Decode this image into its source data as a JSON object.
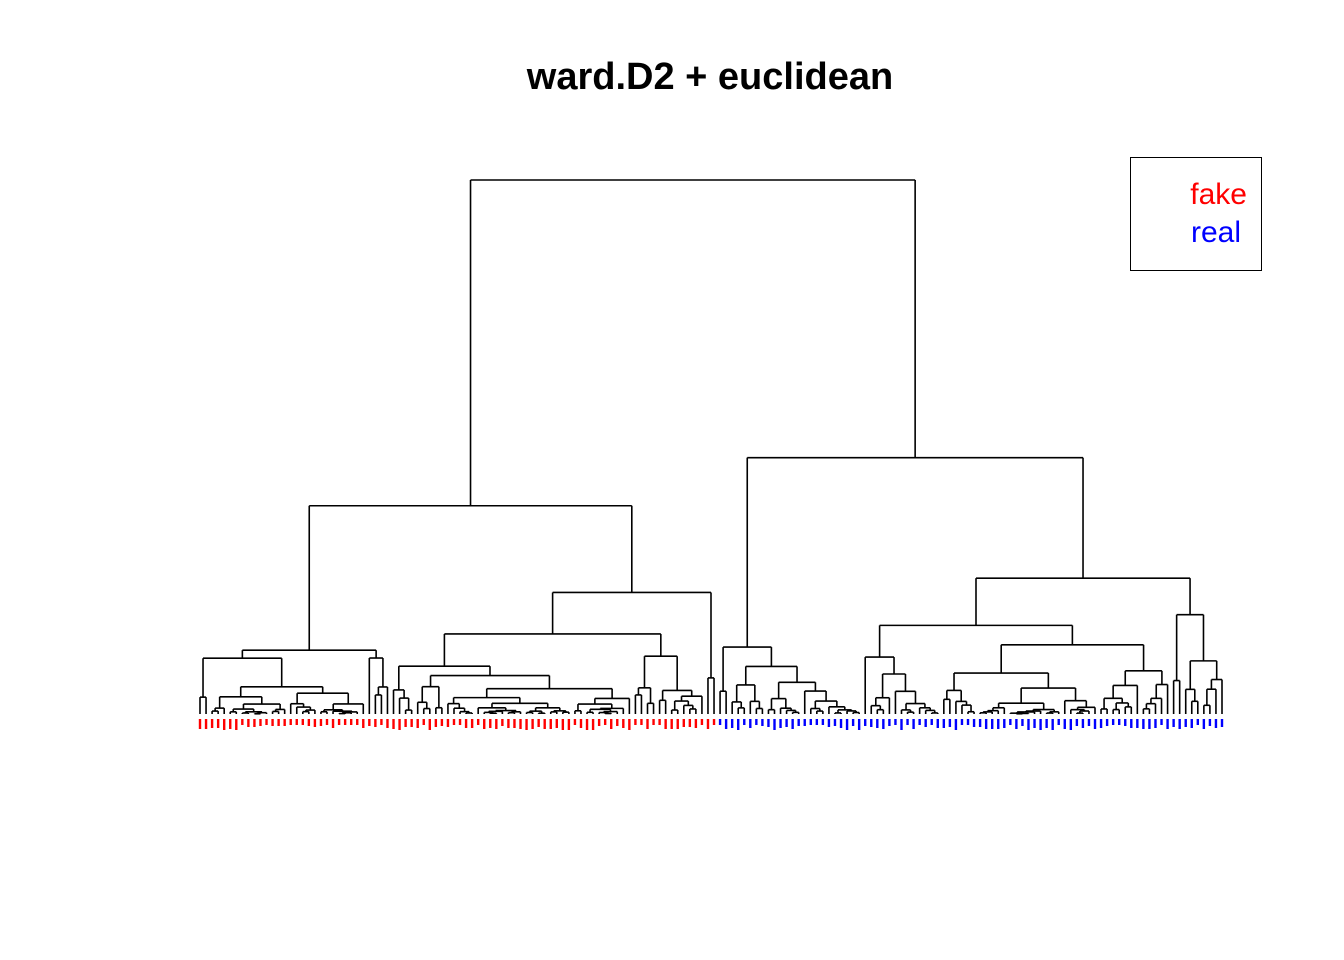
{
  "chart_data": {
    "type": "dendrogram",
    "title": "ward.D2 + euclidean",
    "legend": {
      "placement": "top-right",
      "entries": [
        {
          "label": "fake",
          "color": "#ff0000"
        },
        {
          "label": "real",
          "color": "#0000ff"
        }
      ]
    },
    "leaf_groups": [
      {
        "group": "fake",
        "count": 86,
        "color": "#ff0000"
      },
      {
        "group": "real",
        "count": 84,
        "color": "#0000ff"
      }
    ],
    "merge_heights": {
      "root": 1.0,
      "fake_cluster": 0.39,
      "real_cluster": 0.48,
      "fake_sub_a": 0.16,
      "fake_sub_b": 0.3,
      "real_sub_a": 0.16,
      "real_sub_b": 0.3
    }
  }
}
